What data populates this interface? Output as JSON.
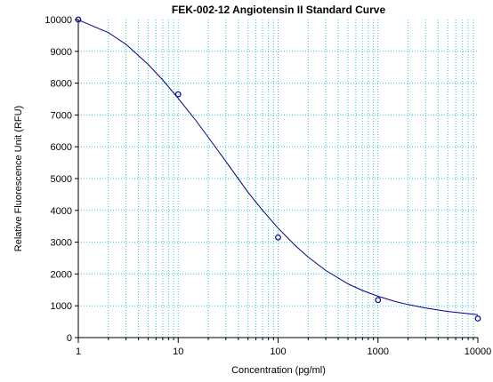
{
  "chart_data": {
    "type": "scatter",
    "title": "FEK-002-12 Angiotensin II Standard Curve",
    "xlabel": "Concentration (pg/ml)",
    "ylabel": "Relative Fluorescence Unit (RFU)",
    "xscale": "log",
    "xlim": [
      1,
      10000
    ],
    "ylim": [
      0,
      10000
    ],
    "xticks": [
      1,
      10,
      100,
      1000,
      10000
    ],
    "xtick_labels": [
      "1",
      "10",
      "100",
      "1000",
      "10000"
    ],
    "yticks": [
      0,
      1000,
      2000,
      3000,
      4000,
      5000,
      6000,
      7000,
      8000,
      9000,
      10000
    ],
    "ytick_labels": [
      "0",
      "1000",
      "2000",
      "3000",
      "4000",
      "5000",
      "6000",
      "7000",
      "8000",
      "9000",
      "10000"
    ],
    "grid": true,
    "series": [
      {
        "type": "scatter",
        "marker": "open-circle",
        "x": [
          1,
          10,
          100,
          1000,
          10000
        ],
        "y": [
          10000,
          7650,
          3150,
          1180,
          600
        ]
      },
      {
        "type": "line",
        "fit": "4PL",
        "x": [
          1,
          2,
          3,
          5,
          7,
          10,
          15,
          20,
          30,
          50,
          70,
          100,
          150,
          200,
          300,
          500,
          700,
          1000,
          1500,
          2000,
          3000,
          5000,
          7000,
          10000
        ],
        "y": [
          9990,
          9590,
          9220,
          8590,
          8100,
          7520,
          6830,
          6300,
          5540,
          4570,
          4000,
          3440,
          2880,
          2530,
          2110,
          1690,
          1480,
          1300,
          1130,
          1040,
          930,
          820,
          770,
          720
        ]
      }
    ],
    "colors": {
      "series": "#00008b",
      "grid": "#32c8dc",
      "axis": "#000000",
      "background": "#ffffff"
    }
  }
}
